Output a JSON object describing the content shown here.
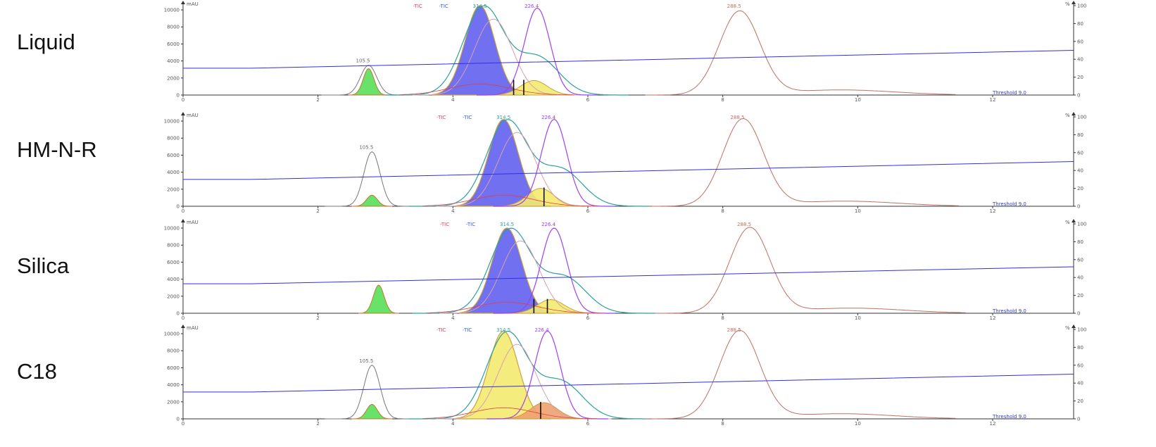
{
  "labels": [
    "Liquid",
    "HM-N-R",
    "Silica",
    "C18"
  ],
  "axis": {
    "y_unit": "mAU",
    "y_right_unit": "%",
    "y_ticks": [
      "0",
      "2000",
      "4000",
      "6000",
      "8000",
      "10000"
    ],
    "y_right_ticks": [
      "0",
      "20",
      "40",
      "60",
      "80",
      "100"
    ],
    "x_ticks": [
      "0",
      "2",
      "4",
      "6",
      "8",
      "10",
      "12"
    ],
    "x_range": [
      0,
      13.2
    ],
    "y_range": [
      0,
      10500
    ]
  },
  "legend_tags": [
    "-TIC",
    "-TIC",
    "314.5",
    "226.4",
    "288.5"
  ],
  "peak_labels": {
    "first": "105.5",
    "main": "314.5",
    "second": "226.4",
    "late": "288.5"
  },
  "footer_text": "Threshold 9.0",
  "colors": {
    "tic_gray": "#777777",
    "tic_teal": "#2aa0a0",
    "purple": "#a040f0",
    "brown": "#c07060",
    "gradient_blue": "#3030e0",
    "blue_fill": "#6060f0",
    "yellow_fill": "#f4ea70",
    "green_fill": "#60e060",
    "orange_fill": "#f0a070"
  },
  "chart_data": [
    {
      "type": "line",
      "title": "Liquid",
      "xlabel": "",
      "ylabel": "mAU",
      "xlim": [
        0,
        13.2
      ],
      "ylim": [
        0,
        10500
      ],
      "first_peak": {
        "rt": 2.75,
        "gray": 3500,
        "green": 3100,
        "green_color": "green"
      },
      "main_peak": {
        "rt": 4.4,
        "height": 10500,
        "color": "blue"
      },
      "shoulder_peak": {
        "rt": 5.2,
        "height": 1700,
        "color": "yellow"
      },
      "purple_peak": {
        "rt": 5.25,
        "height": 10200
      },
      "brown_peak": {
        "rt": 8.25,
        "height": 9800
      },
      "gradient_percent": [
        30,
        50
      ],
      "cut_lines": [
        4.9,
        5.05
      ]
    },
    {
      "type": "line",
      "title": "HM-N-R",
      "xlabel": "",
      "ylabel": "mAU",
      "xlim": [
        0,
        13.2
      ],
      "ylim": [
        0,
        10500
      ],
      "first_peak": {
        "rt": 2.8,
        "gray": 6400,
        "green": 1300,
        "green_color": "green"
      },
      "main_peak": {
        "rt": 4.75,
        "height": 10200,
        "color": "blue"
      },
      "shoulder_peak": {
        "rt": 5.3,
        "height": 2100,
        "color": "yellow"
      },
      "purple_peak": {
        "rt": 5.5,
        "height": 10200
      },
      "brown_peak": {
        "rt": 8.3,
        "height": 10200
      },
      "gradient_percent": [
        30,
        50
      ],
      "cut_lines": [
        5.35
      ]
    },
    {
      "type": "line",
      "title": "Silica",
      "xlabel": "",
      "ylabel": "mAU",
      "xlim": [
        0,
        13.2
      ],
      "ylim": [
        0,
        10500
      ],
      "first_peak": {
        "rt": 2.9,
        "gray": 0,
        "green": 3300,
        "green_color": "green"
      },
      "main_peak": {
        "rt": 4.8,
        "height": 10000,
        "color": "blue"
      },
      "shoulder_peak": {
        "rt": 5.45,
        "height": 1600,
        "color": "yellow"
      },
      "purple_peak": {
        "rt": 5.5,
        "height": 10000
      },
      "brown_peak": {
        "rt": 8.4,
        "height": 10000
      },
      "gradient_percent": [
        33,
        52
      ],
      "cut_lines": [
        5.2,
        5.4
      ]
    },
    {
      "type": "line",
      "title": "C18",
      "xlabel": "",
      "ylabel": "mAU",
      "xlim": [
        0,
        13.2
      ],
      "ylim": [
        0,
        10500
      ],
      "first_peak": {
        "rt": 2.8,
        "gray": 6300,
        "green": 1700,
        "green_color": "green"
      },
      "main_peak": {
        "rt": 4.75,
        "height": 10300,
        "color": "yellow"
      },
      "shoulder_peak": {
        "rt": 5.35,
        "height": 1900,
        "color": "orange"
      },
      "purple_peak": {
        "rt": 5.4,
        "height": 10300
      },
      "brown_peak": {
        "rt": 8.25,
        "height": 10300
      },
      "gradient_percent": [
        30,
        50
      ],
      "cut_lines": [
        5.3
      ]
    }
  ]
}
